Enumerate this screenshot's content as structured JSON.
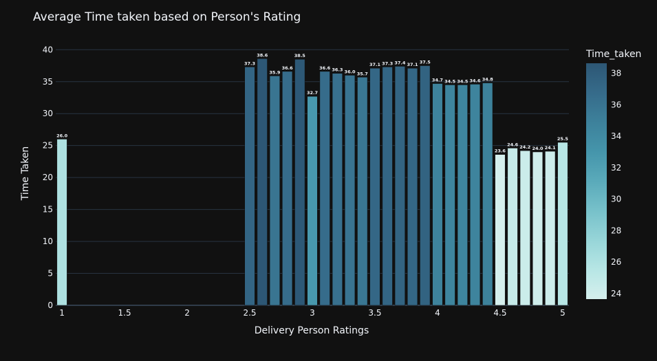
{
  "chart_data": {
    "type": "bar",
    "title": "Average Time taken based on Person's Rating",
    "xlabel": "Delivery Person Ratings",
    "ylabel": "Time Taken",
    "xlim": [
      0.95,
      5.05
    ],
    "ylim": [
      0,
      41
    ],
    "x_ticks": [
      "1",
      "1.5",
      "2",
      "2.5",
      "3",
      "3.5",
      "4",
      "4.5",
      "5"
    ],
    "y_ticks": [
      "0",
      "5",
      "10",
      "15",
      "20",
      "25",
      "30",
      "35",
      "40"
    ],
    "bar_width": 0.08,
    "x": [
      1,
      2.5,
      2.6,
      2.7,
      2.8,
      2.9,
      3.0,
      3.1,
      3.2,
      3.3,
      3.4,
      3.5,
      3.6,
      3.7,
      3.8,
      3.9,
      4.0,
      4.1,
      4.2,
      4.3,
      4.4,
      4.5,
      4.6,
      4.7,
      4.8,
      4.9,
      5.0
    ],
    "values": [
      26.0,
      37.3,
      38.6,
      35.9,
      36.6,
      38.5,
      32.7,
      36.6,
      36.3,
      36.0,
      35.7,
      37.1,
      37.3,
      37.4,
      37.1,
      37.5,
      34.7,
      34.5,
      34.5,
      34.6,
      34.8,
      23.6,
      24.6,
      24.2,
      24.0,
      24.1,
      25.5
    ],
    "data_labels": [
      "26.0",
      "37.3",
      "38.6",
      "35.9",
      "36.6",
      "38.5",
      "32.7",
      "36.6",
      "36.3",
      "36.0",
      "35.7",
      "37.1",
      "37.3",
      "37.4",
      "37.1",
      "37.5",
      "34.7",
      "34.5",
      "34.5",
      "34.6",
      "34.8",
      "23.6",
      "24.6",
      "24.2",
      "24.0",
      "24.1",
      "25.5"
    ],
    "grid": true,
    "colorbar": {
      "title": "Time_taken",
      "min": 23.6,
      "max": 38.6,
      "ticks": [
        "24",
        "26",
        "28",
        "30",
        "32",
        "34",
        "36",
        "38"
      ],
      "colors": [
        "#d5efed",
        "#b7e6e5",
        "#97d5d8",
        "#77c1ca",
        "#5aaaba",
        "#4595ab",
        "#3d819b",
        "#366b8a",
        "#2d5775"
      ]
    },
    "colors": {
      "background": "#111111",
      "grid": "#283442",
      "text": "#f2f5fa",
      "bar_outline": "#111111"
    }
  }
}
